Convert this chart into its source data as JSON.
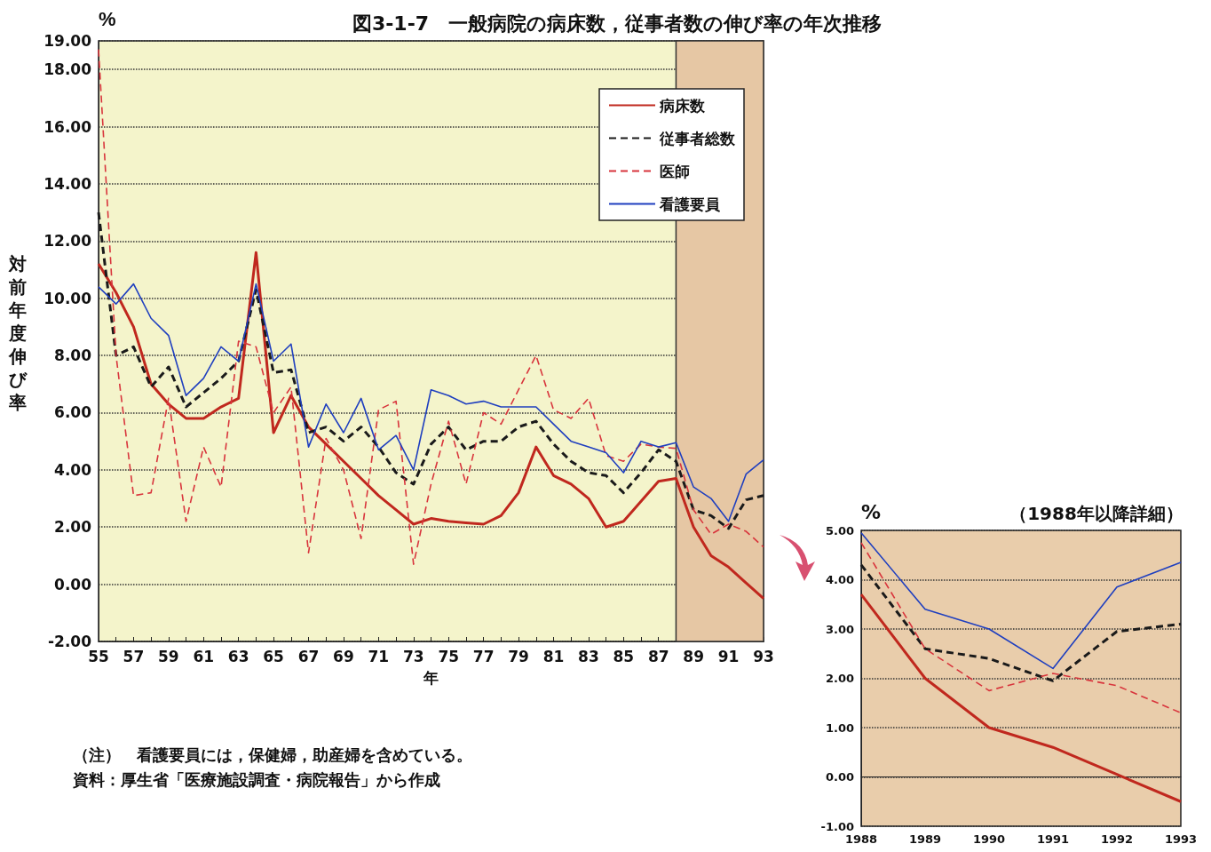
{
  "chart_data": [
    {
      "type": "line",
      "title": "図3-1-7　一般病院の病床数，従事者数の伸び率の年次推移",
      "xlabel": "年",
      "ylabel": "対前年度伸び率",
      "annotations": [
        "%",
        "（注）　看護要員には，保健婦，助産婦を含めている。",
        "資料：厚生省「医療施設調査・病院報告」から作成"
      ],
      "x": [
        55,
        56,
        57,
        58,
        59,
        60,
        61,
        62,
        63,
        64,
        65,
        66,
        67,
        68,
        69,
        70,
        71,
        72,
        73,
        74,
        75,
        76,
        77,
        78,
        79,
        80,
        81,
        82,
        83,
        84,
        85,
        86,
        87,
        88,
        89,
        90,
        91,
        92,
        93
      ],
      "series": [
        {
          "name": "病床数",
          "color": "#c0281e",
          "line_style": "solid",
          "values": [
            11.2,
            10.2,
            9.0,
            7.0,
            6.3,
            5.8,
            5.8,
            6.2,
            6.5,
            11.6,
            5.3,
            6.6,
            5.5,
            4.9,
            4.3,
            3.7,
            3.1,
            2.6,
            2.1,
            2.3,
            2.2,
            2.15,
            2.1,
            2.4,
            3.2,
            4.8,
            3.8,
            3.5,
            3.0,
            2.0,
            2.2,
            2.9,
            3.6,
            3.7,
            2.0,
            1.0,
            0.6,
            0.05,
            -0.5
          ]
        },
        {
          "name": "従事者総数",
          "color": "#1a1a1a",
          "line_style": "dashed",
          "values": [
            13.0,
            8.0,
            8.3,
            6.9,
            7.6,
            6.2,
            6.7,
            7.2,
            7.8,
            10.3,
            7.4,
            7.5,
            5.3,
            5.5,
            5.0,
            5.5,
            4.8,
            3.9,
            3.5,
            4.9,
            5.5,
            4.7,
            5.0,
            5.0,
            5.5,
            5.7,
            4.9,
            4.3,
            3.9,
            3.8,
            3.2,
            3.9,
            4.7,
            4.3,
            2.6,
            2.4,
            1.95,
            2.95,
            3.1
          ]
        },
        {
          "name": "医師",
          "color": "#d8343c",
          "line_style": "dashed",
          "values": [
            18.7,
            8.0,
            3.1,
            3.2,
            6.5,
            2.2,
            4.8,
            3.4,
            8.5,
            8.3,
            6.0,
            6.9,
            1.1,
            5.1,
            4.0,
            1.6,
            6.1,
            6.4,
            0.7,
            3.5,
            5.7,
            3.5,
            6.0,
            5.6,
            6.8,
            8.0,
            6.1,
            5.8,
            6.5,
            4.5,
            4.3,
            4.9,
            4.8,
            4.75,
            2.6,
            1.75,
            2.1,
            1.85,
            1.3
          ]
        },
        {
          "name": "看護要員",
          "color": "#1f3fbf",
          "line_style": "solid",
          "values": [
            10.4,
            9.8,
            10.5,
            9.3,
            8.7,
            6.6,
            7.2,
            8.3,
            7.8,
            10.5,
            7.8,
            8.4,
            4.8,
            6.3,
            5.3,
            6.5,
            4.7,
            5.2,
            4.0,
            6.8,
            6.6,
            6.3,
            6.4,
            6.2,
            6.2,
            6.2,
            5.6,
            5.0,
            4.8,
            4.6,
            3.9,
            5.0,
            4.8,
            4.95,
            3.4,
            3.0,
            2.2,
            3.85,
            4.35
          ]
        }
      ],
      "xlim": [
        55,
        93
      ],
      "xticks": [
        55,
        {
          "value": 56,
          "label": null
        },
        57,
        {
          "value": 58,
          "label": null
        },
        59,
        {
          "value": 60,
          "label": null
        },
        61,
        {
          "value": 62,
          "label": null
        },
        63,
        {
          "value": 64,
          "label": null
        },
        65,
        {
          "value": 66,
          "label": null
        },
        67,
        {
          "value": 68,
          "label": null
        },
        69,
        {
          "value": 70,
          "label": null
        },
        71,
        {
          "value": 72,
          "label": null
        },
        73,
        {
          "value": 74,
          "label": null
        },
        75,
        {
          "value": 76,
          "label": null
        },
        77,
        {
          "value": 78,
          "label": null
        },
        79,
        {
          "value": 80,
          "label": null
        },
        81,
        {
          "value": 82,
          "label": null
        },
        83,
        {
          "value": 84,
          "label": null
        },
        85,
        {
          "value": 86,
          "label": null
        },
        87,
        {
          "value": 88,
          "label": null
        },
        89,
        {
          "value": 90,
          "label": null
        },
        91,
        {
          "value": 92,
          "label": null
        },
        93
      ],
      "ylim": [
        -2,
        19
      ],
      "yticks": [
        {
          "value": -2,
          "label": "-2.00"
        },
        {
          "value": 0,
          "label": "0.00"
        },
        {
          "value": 2,
          "label": "2.00"
        },
        {
          "value": 4,
          "label": "4.00"
        },
        {
          "value": 6,
          "label": "6.00"
        },
        {
          "value": 8,
          "label": "8.00"
        },
        {
          "value": 10,
          "label": "10.00"
        },
        {
          "value": 12,
          "label": "12.00"
        },
        {
          "value": 14,
          "label": "14.00"
        },
        {
          "value": 16,
          "label": "16.00"
        },
        {
          "value": 18,
          "label": "18.00"
        },
        {
          "value": 19,
          "label": "19.00"
        }
      ],
      "bands": [
        {
          "axis": "x",
          "from": 88,
          "to": 93,
          "color": "#e6c7a4"
        }
      ],
      "grid": "y",
      "legend": "top right"
    },
    {
      "type": "line",
      "title": "（1988年以降詳細）",
      "ylabel": "%",
      "categories": [
        "1988",
        "1989",
        "1990",
        "1991",
        "1992",
        "1993"
      ],
      "series": [
        {
          "color": "#c0281e",
          "line_style": "solid",
          "values": [
            3.7,
            2.0,
            1.0,
            0.6,
            0.05,
            -0.5
          ]
        },
        {
          "color": "#1a1a1a",
          "line_style": "dashed",
          "values": [
            4.3,
            2.6,
            2.4,
            1.95,
            2.95,
            3.1
          ]
        },
        {
          "color": "#d8343c",
          "line_style": "dashed",
          "values": [
            4.75,
            2.6,
            1.75,
            2.1,
            1.85,
            1.3
          ]
        },
        {
          "color": "#1f3fbf",
          "line_style": "solid",
          "values": [
            4.95,
            3.4,
            3.0,
            2.2,
            3.85,
            4.35
          ]
        }
      ],
      "ylim": [
        -1,
        5
      ],
      "yticks": [
        {
          "value": -1,
          "label": "-1.00"
        },
        {
          "value": 0,
          "label": "0.00"
        },
        {
          "value": 1,
          "label": "1.00"
        },
        {
          "value": 2,
          "label": "2.00"
        },
        {
          "value": 3,
          "label": "3.00"
        },
        {
          "value": 4,
          "label": "4.00"
        },
        {
          "value": 5,
          "label": "5.00"
        }
      ],
      "grid": "y"
    }
  ]
}
